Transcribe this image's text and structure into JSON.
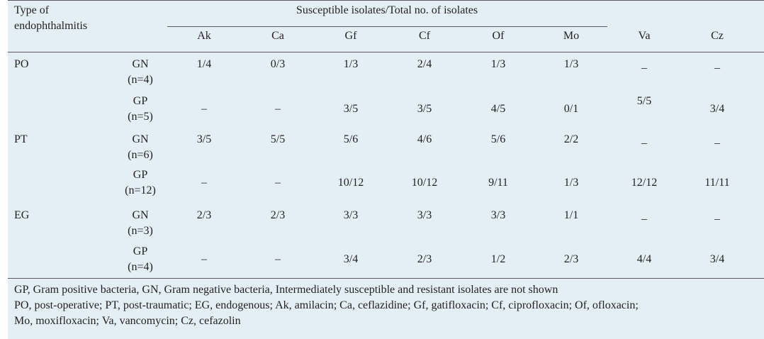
{
  "header": {
    "type_label_line1": "Type of",
    "type_label_line2": "endophthalmitis",
    "group_title": "Susceptible isolates/Total no. of isolates",
    "columns": [
      "Ak",
      "Ca",
      "Gf",
      "Cf",
      "Of",
      "Mo",
      "Va",
      "Cz"
    ]
  },
  "rows": [
    {
      "type": "PO",
      "gram": "GN",
      "n": "(n=4)",
      "values": [
        "1/4",
        "0/3",
        "1/3",
        "2/4",
        "1/3",
        "1/3",
        "_",
        "_"
      ]
    },
    {
      "type": "",
      "gram": "GP",
      "n": "(n=5)",
      "values": [
        "–",
        "–",
        "3/5",
        "3/5",
        "4/5",
        "0/1",
        "5/5",
        "3/4"
      ]
    },
    {
      "type": "PT",
      "gram": "GN",
      "n": "(n=6)",
      "values": [
        "3/5",
        "5/5",
        "5/6",
        "4/6",
        "5/6",
        "2/2",
        "_",
        "_"
      ]
    },
    {
      "type": "",
      "gram": "GP",
      "n": "(n=12)",
      "values": [
        "–",
        "–",
        "10/12",
        "10/12",
        "9/11",
        "1/3",
        "12/12",
        "11/11"
      ]
    },
    {
      "type": "EG",
      "gram": "GN",
      "n": "(n=3)",
      "values": [
        "2/3",
        "2/3",
        "3/3",
        "3/3",
        "3/3",
        "1/1",
        "_",
        "_"
      ]
    },
    {
      "type": "",
      "gram": "GP",
      "n": "(n=4)",
      "values": [
        "–",
        "–",
        "3/4",
        "2/3",
        "1/2",
        "2/3",
        "4/4",
        "3/4"
      ]
    }
  ],
  "footnotes": [
    "GP, Gram positive bacteria, GN, Gram negative bacteria, Intermediately susceptible and resistant isolates are not shown",
    "PO, post-operative; PT, post-traumatic; EG, endogenous; Ak, amilacin; Ca, ceflazidine; Gf, gatifloxacin; Cf, ciprofloxacin; Of, ofloxacin;",
    "Mo, moxifloxacin; Va, vancomycin; Cz, cefazolin"
  ]
}
